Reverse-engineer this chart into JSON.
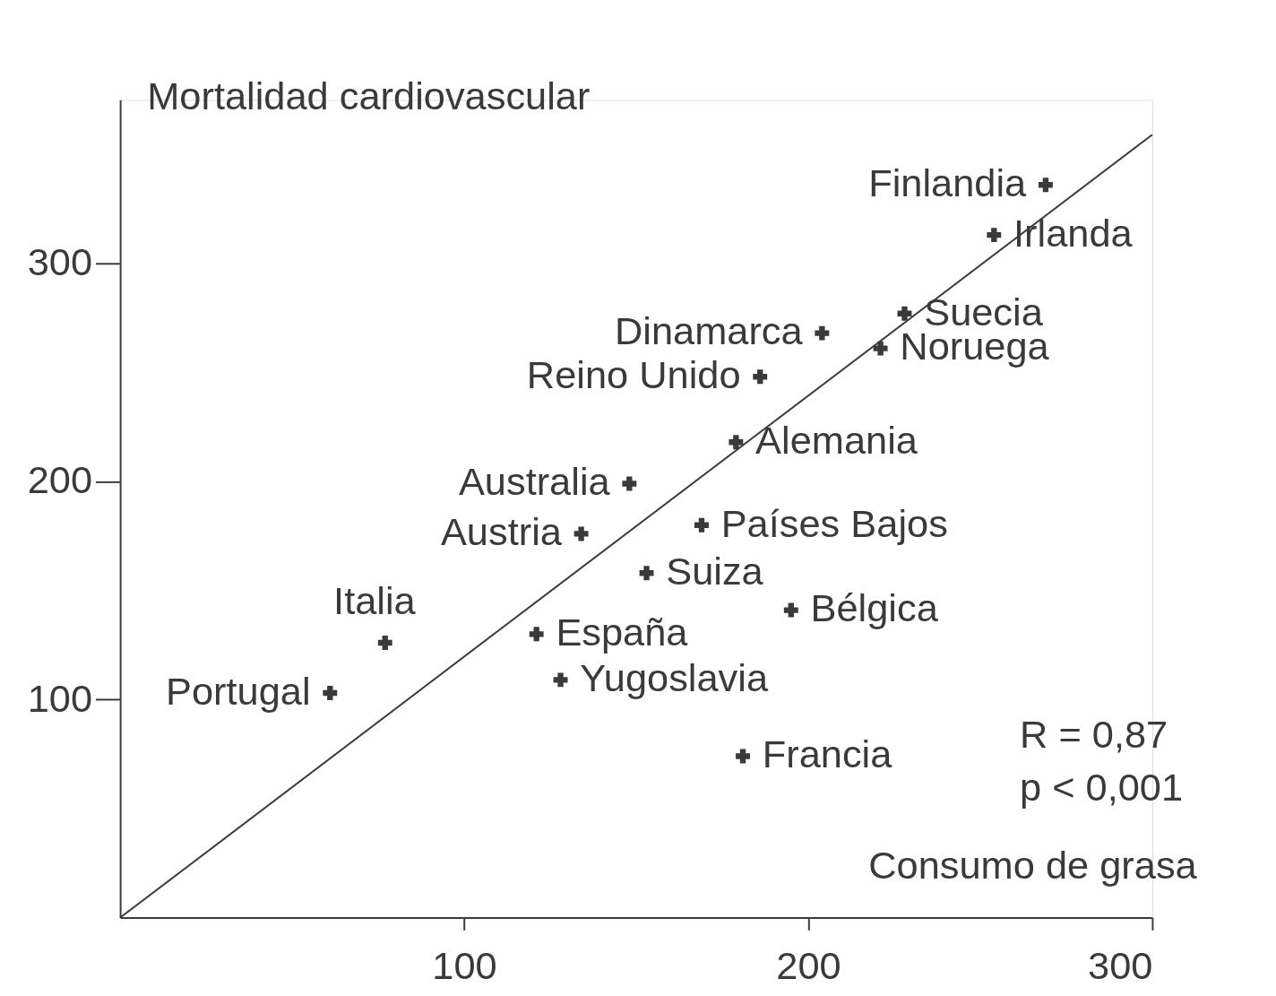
{
  "chart_data": {
    "type": "scatter",
    "xlabel": "Consumo de grasa",
    "ylabel": "Mortalidad cardiovascular",
    "xlim": [
      0,
      300
    ],
    "ylim": [
      0,
      375
    ],
    "xticks": [
      100,
      200,
      300
    ],
    "yticks": [
      100,
      200,
      300
    ],
    "grid": false,
    "series": [
      {
        "marker": "cross",
        "color": "#3a3a3a",
        "x": [
          269,
          254,
          228,
          221,
          204,
          186,
          179,
          148,
          134,
          169,
          153,
          195,
          121,
          128,
          77,
          61,
          181
        ],
        "values": [
          336,
          313,
          277,
          261,
          268,
          248,
          218,
          199,
          176,
          180,
          158,
          141,
          130,
          109,
          126,
          103,
          74
        ]
      },
      {
        "type": "line",
        "marker": "none",
        "color": "#3a3a3a",
        "x": [
          0,
          300
        ],
        "values": [
          0,
          359
        ]
      }
    ],
    "annotations": [
      {
        "text": "Finlandia",
        "x": 269,
        "y": 336
      },
      {
        "text": "Irlanda",
        "x": 254,
        "y": 313
      },
      {
        "text": "Suecia",
        "x": 228,
        "y": 277
      },
      {
        "text": "Noruega",
        "x": 221,
        "y": 261
      },
      {
        "text": "Dinamarca",
        "x": 204,
        "y": 268
      },
      {
        "text": "Reino Unido",
        "x": 186,
        "y": 248
      },
      {
        "text": "Alemania",
        "x": 179,
        "y": 218
      },
      {
        "text": "Australia",
        "x": 148,
        "y": 199
      },
      {
        "text": "Austria",
        "x": 134,
        "y": 176
      },
      {
        "text": "Países Bajos",
        "x": 169,
        "y": 180
      },
      {
        "text": "Suiza",
        "x": 153,
        "y": 158
      },
      {
        "text": "Bélgica",
        "x": 195,
        "y": 141
      },
      {
        "text": "España",
        "x": 121,
        "y": 130
      },
      {
        "text": "Yugoslavia",
        "x": 128,
        "y": 109
      },
      {
        "text": "Italia",
        "x": 77,
        "y": 126
      },
      {
        "text": "Portugal",
        "x": 61,
        "y": 103
      },
      {
        "text": "Francia",
        "x": 181,
        "y": 74
      },
      "R = 0,87",
      "p < 0,001"
    ]
  }
}
